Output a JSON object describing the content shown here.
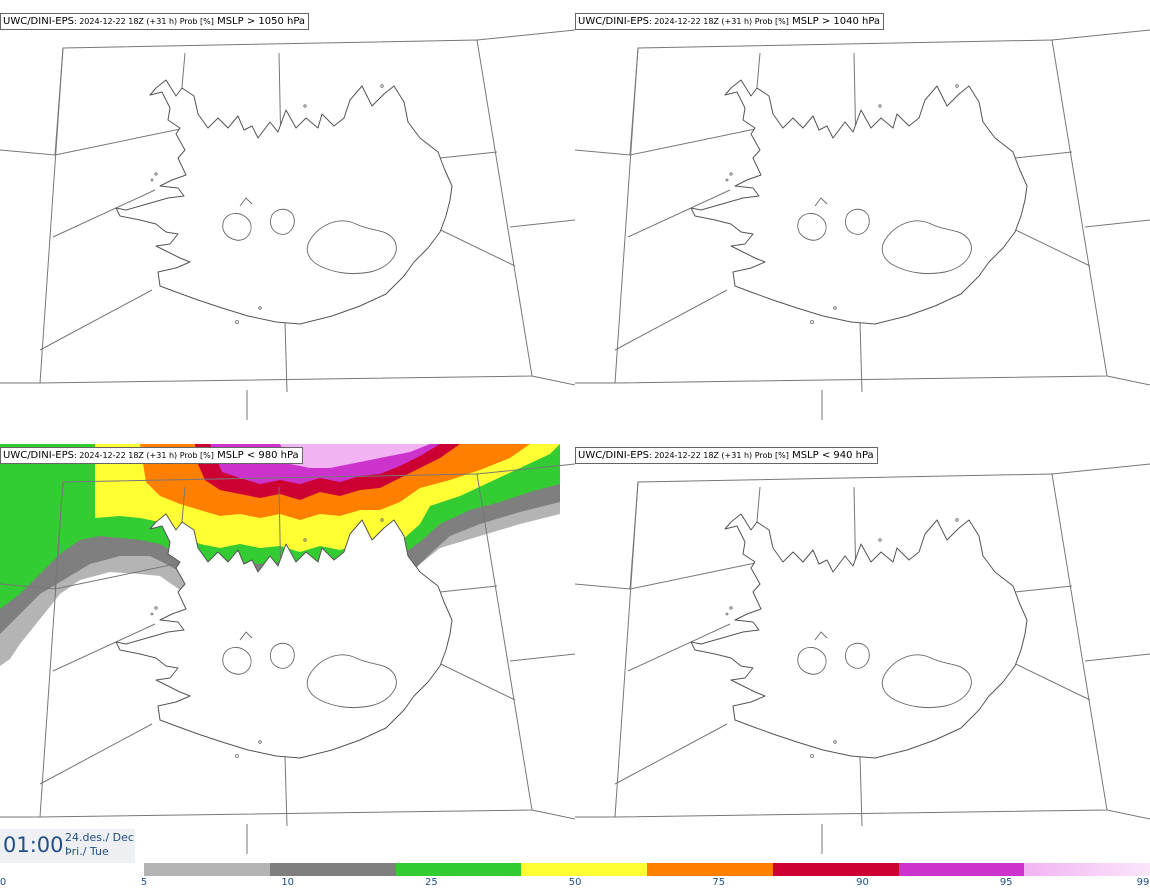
{
  "panels": [
    {
      "model": "UWC/DINI-EPS",
      "run": ": 2024-12-22 18Z (+31 h) Prob [%]",
      "condition": "MSLP > 1050 hPa"
    },
    {
      "model": "UWC/DINI-EPS",
      "run": ": 2024-12-22 18Z (+31 h) Prob [%]",
      "condition": "MSLP > 1040 hPa"
    },
    {
      "model": "UWC/DINI-EPS",
      "run": ": 2024-12-22 18Z (+31 h) Prob [%]",
      "condition": "MSLP < 980 hPa"
    },
    {
      "model": "UWC/DINI-EPS",
      "run": ": 2024-12-22 18Z (+31 h) Prob [%]",
      "condition": "MSLP < 940 hPa"
    }
  ],
  "time": {
    "clock": "01:00",
    "date": "24.des./ Dec",
    "weekday": "Þri./ Tue"
  },
  "colorbar": {
    "ticks": [
      "0",
      "5",
      "10",
      "25",
      "50",
      "75",
      "90",
      "95",
      "99"
    ],
    "colors": [
      "#b4b4b4",
      "#7f7f7f",
      "#33cc33",
      "#ffff33",
      "#ff7f00",
      "#cc0033",
      "#cc33cc",
      "#f2b3f2"
    ]
  }
}
